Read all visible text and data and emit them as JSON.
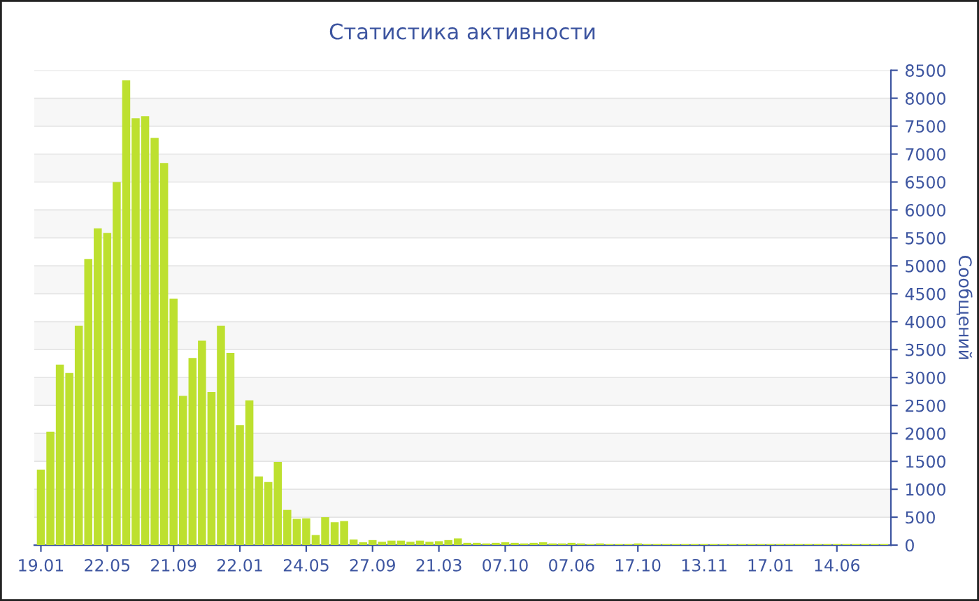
{
  "chart_data": {
    "type": "bar",
    "title": "Статистика активности",
    "ylabel": "Сообщений",
    "categories": [
      "19.01",
      null,
      null,
      null,
      null,
      null,
      null,
      "22.05",
      null,
      null,
      null,
      null,
      null,
      null,
      "21.09",
      null,
      null,
      null,
      null,
      null,
      null,
      "22.01",
      null,
      null,
      null,
      null,
      null,
      null,
      "24.05",
      null,
      null,
      null,
      null,
      null,
      null,
      "27.09",
      null,
      null,
      null,
      null,
      null,
      null,
      "21.03",
      null,
      null,
      null,
      null,
      null,
      null,
      "07.10",
      null,
      null,
      null,
      null,
      null,
      null,
      "07.06",
      null,
      null,
      null,
      null,
      null,
      null,
      "17.10",
      null,
      null,
      null,
      null,
      null,
      null,
      "13.11",
      null,
      null,
      null,
      null,
      null,
      null,
      "17.01",
      null,
      null,
      null,
      null,
      null,
      null,
      "14.06",
      null,
      null,
      null,
      null,
      null
    ],
    "values": [
      1350,
      2030,
      3230,
      3080,
      3930,
      5120,
      5670,
      5590,
      6500,
      8320,
      7640,
      7680,
      7290,
      6840,
      4410,
      2670,
      3350,
      3660,
      2740,
      3930,
      3440,
      2150,
      2590,
      1230,
      1130,
      1490,
      630,
      470,
      480,
      180,
      500,
      410,
      430,
      100,
      50,
      90,
      60,
      80,
      80,
      60,
      80,
      60,
      70,
      90,
      120,
      40,
      40,
      30,
      40,
      50,
      40,
      30,
      40,
      50,
      30,
      30,
      40,
      30,
      20,
      30,
      20,
      20,
      20,
      30,
      20,
      20,
      20,
      20,
      20,
      20,
      20,
      20,
      20,
      20,
      20,
      20,
      20,
      20,
      20,
      20,
      20,
      20,
      20,
      20,
      20,
      20,
      20,
      20,
      20,
      20
    ],
    "color": "#bde02f",
    "ylim": [
      0,
      8500
    ],
    "yticks": [
      0,
      500,
      1000,
      1500,
      2000,
      2500,
      3000,
      3500,
      4000,
      4500,
      5000,
      5500,
      6000,
      6500,
      7000,
      7500,
      8000,
      8500
    ],
    "grid": "y"
  }
}
